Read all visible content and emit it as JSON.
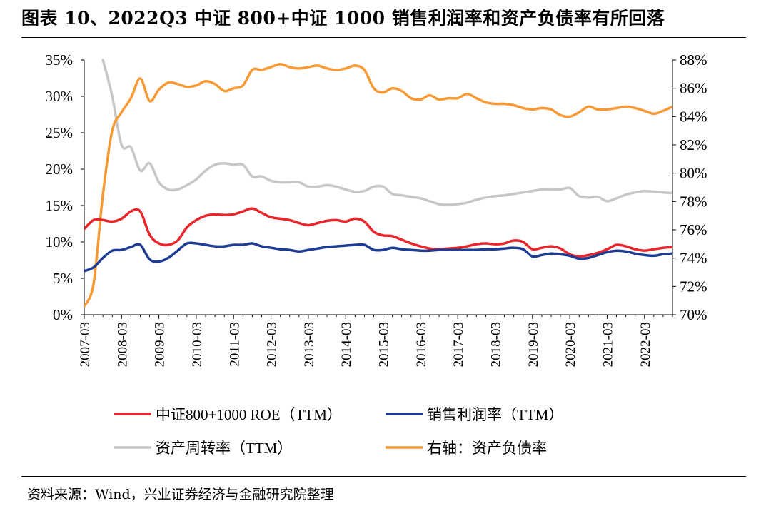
{
  "title": "图表 10、2022Q3 中证 800+中证 1000 销售利润率和资产负债率有所回落",
  "source": "资料来源：Wind，兴业证券经济与金融研究院整理",
  "chart_data": {
    "type": "line",
    "title": "图表 10、2022Q3 中证 800+中证 1000 销售利润率和资产负债率有所回落",
    "x_tick_labels": [
      "2007-03",
      "2008-03",
      "2009-03",
      "2010-03",
      "2011-03",
      "2012-03",
      "2013-03",
      "2014-03",
      "2015-03",
      "2016-03",
      "2017-03",
      "2018-03",
      "2019-03",
      "2020-03",
      "2021-03",
      "2022-03"
    ],
    "x_range": [
      2007.0,
      2022.75
    ],
    "y_left": {
      "range": [
        0,
        35
      ],
      "ticks": [
        0,
        5,
        10,
        15,
        20,
        25,
        30,
        35
      ],
      "tick_labels": [
        "0%",
        "5%",
        "10%",
        "15%",
        "20%",
        "25%",
        "30%",
        "35%"
      ]
    },
    "y_right": {
      "range": [
        70,
        88
      ],
      "ticks": [
        70,
        72,
        74,
        76,
        78,
        80,
        82,
        84,
        86,
        88
      ],
      "tick_labels": [
        "70%",
        "72%",
        "74%",
        "76%",
        "78%",
        "80%",
        "82%",
        "84%",
        "86%",
        "88%"
      ]
    },
    "legend_position": "bottom",
    "series": [
      {
        "name": "中证800+1000 ROE（TTM）",
        "axis": "left",
        "color": "#e8262b",
        "x": [
          2007.0,
          2007.25,
          2007.5,
          2007.75,
          2008.0,
          2008.25,
          2008.5,
          2008.75,
          2009.0,
          2009.25,
          2009.5,
          2009.75,
          2010.0,
          2010.25,
          2010.5,
          2010.75,
          2011.0,
          2011.25,
          2011.5,
          2011.75,
          2012.0,
          2012.25,
          2012.5,
          2012.75,
          2013.0,
          2013.25,
          2013.5,
          2013.75,
          2014.0,
          2014.25,
          2014.5,
          2014.75,
          2015.0,
          2015.25,
          2015.5,
          2015.75,
          2016.0,
          2016.25,
          2016.5,
          2016.75,
          2017.0,
          2017.25,
          2017.5,
          2017.75,
          2018.0,
          2018.25,
          2018.5,
          2018.75,
          2019.0,
          2019.25,
          2019.5,
          2019.75,
          2020.0,
          2020.25,
          2020.5,
          2020.75,
          2021.0,
          2021.25,
          2021.5,
          2021.75,
          2022.0,
          2022.25,
          2022.5,
          2022.75
        ],
        "values": [
          11.8,
          13.0,
          13.0,
          12.8,
          13.2,
          14.2,
          14.2,
          11.0,
          9.8,
          9.6,
          10.2,
          12.0,
          13.0,
          13.6,
          13.8,
          13.7,
          13.8,
          14.2,
          14.6,
          14.0,
          13.4,
          13.2,
          13.0,
          12.6,
          12.3,
          12.6,
          12.9,
          13.0,
          12.8,
          13.2,
          12.8,
          11.4,
          10.9,
          10.8,
          10.3,
          9.8,
          9.4,
          9.1,
          9.0,
          9.1,
          9.2,
          9.4,
          9.7,
          9.8,
          9.7,
          9.8,
          10.2,
          10.0,
          9.0,
          9.2,
          9.4,
          9.1,
          8.3,
          8.0,
          8.2,
          8.5,
          9.0,
          9.6,
          9.4,
          9.0,
          8.8,
          9.0,
          9.2,
          9.3
        ]
      },
      {
        "name": "销售利润率（TTM）",
        "axis": "left",
        "color": "#1f3c94",
        "x": [
          2007.0,
          2007.25,
          2007.5,
          2007.75,
          2008.0,
          2008.25,
          2008.5,
          2008.75,
          2009.0,
          2009.25,
          2009.5,
          2009.75,
          2010.0,
          2010.25,
          2010.5,
          2010.75,
          2011.0,
          2011.25,
          2011.5,
          2011.75,
          2012.0,
          2012.25,
          2012.5,
          2012.75,
          2013.0,
          2013.25,
          2013.5,
          2013.75,
          2014.0,
          2014.25,
          2014.5,
          2014.75,
          2015.0,
          2015.25,
          2015.5,
          2015.75,
          2016.0,
          2016.25,
          2016.5,
          2016.75,
          2017.0,
          2017.25,
          2017.5,
          2017.75,
          2018.0,
          2018.25,
          2018.5,
          2018.75,
          2019.0,
          2019.25,
          2019.5,
          2019.75,
          2020.0,
          2020.25,
          2020.5,
          2020.75,
          2021.0,
          2021.25,
          2021.5,
          2021.75,
          2022.0,
          2022.25,
          2022.5,
          2022.75
        ],
        "values": [
          6.0,
          6.5,
          7.8,
          8.8,
          8.9,
          9.3,
          9.6,
          7.6,
          7.3,
          7.8,
          8.8,
          9.8,
          9.8,
          9.6,
          9.4,
          9.4,
          9.6,
          9.6,
          9.8,
          9.4,
          9.2,
          9.0,
          8.9,
          8.7,
          8.9,
          9.1,
          9.3,
          9.4,
          9.5,
          9.6,
          9.6,
          8.9,
          8.9,
          9.2,
          9.0,
          8.9,
          8.8,
          8.8,
          8.9,
          8.9,
          8.9,
          8.9,
          8.9,
          9.0,
          9.0,
          9.1,
          9.2,
          9.0,
          8.0,
          8.2,
          8.4,
          8.3,
          8.1,
          7.7,
          7.8,
          8.2,
          8.6,
          8.8,
          8.7,
          8.4,
          8.2,
          8.1,
          8.3,
          8.4
        ]
      },
      {
        "name": "资产周转率（TTM）",
        "axis": "left",
        "color": "#c7c7c7",
        "x": [
          2007.5,
          2007.75,
          2008.0,
          2008.25,
          2008.5,
          2008.75,
          2009.0,
          2009.25,
          2009.5,
          2009.75,
          2010.0,
          2010.25,
          2010.5,
          2010.75,
          2011.0,
          2011.25,
          2011.5,
          2011.75,
          2012.0,
          2012.25,
          2012.5,
          2012.75,
          2013.0,
          2013.25,
          2013.5,
          2013.75,
          2014.0,
          2014.25,
          2014.5,
          2014.75,
          2015.0,
          2015.25,
          2015.5,
          2015.75,
          2016.0,
          2016.25,
          2016.5,
          2016.75,
          2017.0,
          2017.25,
          2017.5,
          2017.75,
          2018.0,
          2018.25,
          2018.5,
          2018.75,
          2019.0,
          2019.25,
          2019.5,
          2019.75,
          2020.0,
          2020.25,
          2020.5,
          2020.75,
          2021.0,
          2021.25,
          2021.5,
          2021.75,
          2022.0,
          2022.25,
          2022.5,
          2022.75
        ],
        "values": [
          35.0,
          30.0,
          23.3,
          23.0,
          19.8,
          20.8,
          18.2,
          17.2,
          17.2,
          17.8,
          18.6,
          19.8,
          20.6,
          20.8,
          20.6,
          20.6,
          19.0,
          19.0,
          18.4,
          18.2,
          18.2,
          18.2,
          17.6,
          17.6,
          17.8,
          17.6,
          17.2,
          16.9,
          17.0,
          17.6,
          17.6,
          16.6,
          16.4,
          16.2,
          16.0,
          15.6,
          15.2,
          15.1,
          15.2,
          15.4,
          15.8,
          16.1,
          16.3,
          16.4,
          16.6,
          16.8,
          17.0,
          17.2,
          17.2,
          17.2,
          17.4,
          16.3,
          16.1,
          16.2,
          15.6,
          16.0,
          16.5,
          16.8,
          17.0,
          16.9,
          16.8,
          16.7
        ]
      },
      {
        "name": "右轴：资产负债率",
        "axis": "right",
        "color": "#f79a36",
        "x": [
          2007.0,
          2007.25,
          2007.5,
          2007.75,
          2008.0,
          2008.25,
          2008.5,
          2008.75,
          2009.0,
          2009.25,
          2009.5,
          2009.75,
          2010.0,
          2010.25,
          2010.5,
          2010.75,
          2011.0,
          2011.25,
          2011.5,
          2011.75,
          2012.0,
          2012.25,
          2012.5,
          2012.75,
          2013.0,
          2013.25,
          2013.5,
          2013.75,
          2014.0,
          2014.25,
          2014.5,
          2014.75,
          2015.0,
          2015.25,
          2015.5,
          2015.75,
          2016.0,
          2016.25,
          2016.5,
          2016.75,
          2017.0,
          2017.25,
          2017.5,
          2017.75,
          2018.0,
          2018.25,
          2018.5,
          2018.75,
          2019.0,
          2019.25,
          2019.5,
          2019.75,
          2020.0,
          2020.25,
          2020.5,
          2020.75,
          2021.0,
          2021.25,
          2021.5,
          2021.75,
          2022.0,
          2022.25,
          2022.5,
          2022.75
        ],
        "values": [
          70.6,
          72.2,
          78.5,
          83.0,
          84.3,
          85.3,
          86.7,
          85.1,
          85.9,
          86.4,
          86.3,
          86.1,
          86.2,
          86.5,
          86.3,
          85.8,
          86.0,
          86.2,
          87.3,
          87.3,
          87.5,
          87.7,
          87.5,
          87.4,
          87.5,
          87.6,
          87.4,
          87.3,
          87.4,
          87.6,
          87.3,
          86.0,
          85.7,
          86.0,
          85.8,
          85.3,
          85.2,
          85.5,
          85.2,
          85.3,
          85.3,
          85.6,
          85.3,
          85.0,
          84.9,
          84.9,
          84.8,
          84.6,
          84.5,
          84.6,
          84.5,
          84.1,
          84.0,
          84.3,
          84.7,
          84.5,
          84.5,
          84.6,
          84.7,
          84.6,
          84.4,
          84.2,
          84.4,
          84.7
        ]
      }
    ]
  }
}
